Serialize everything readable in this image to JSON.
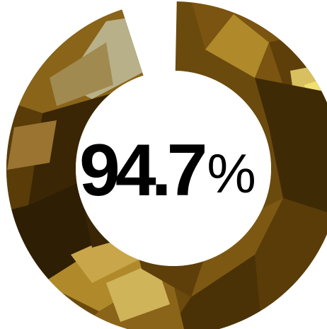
{
  "gauge": {
    "percent": 94.7,
    "value_text": "94.7",
    "unit_text": "%",
    "colors": {
      "dark": "#3a2604",
      "mid": "#7a5410",
      "gold": "#b08a2a",
      "highlight": "#d8c060",
      "pale": "#b8b088",
      "center": "#ffffff",
      "text": "#000000"
    }
  }
}
